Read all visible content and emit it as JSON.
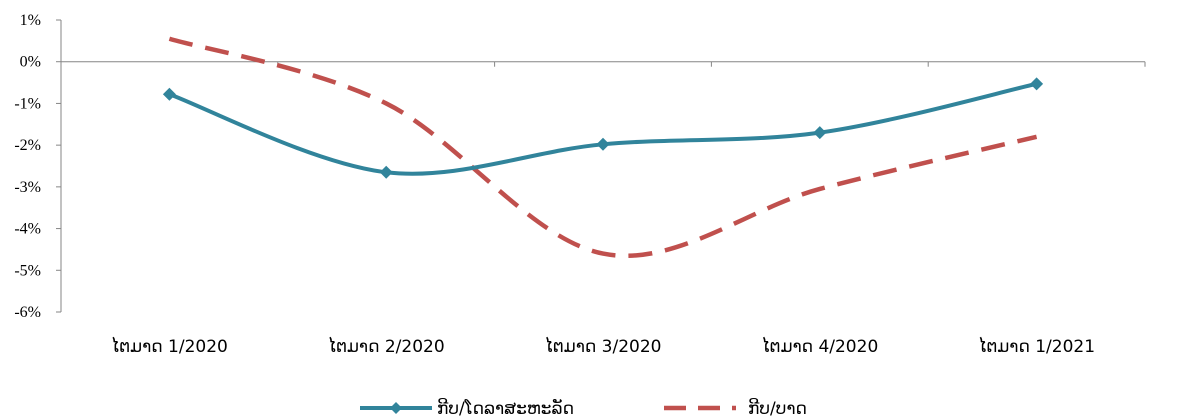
{
  "chart_data": {
    "type": "line",
    "categories": [
      "ໄຕມາດ 1/2020",
      "ໄຕມາດ 2/2020",
      "ໄຕມາດ 3/2020",
      "ໄຕມາດ 4/2020",
      "ໄຕມາດ 1/2021"
    ],
    "series": [
      {
        "name": "ກີບ/ໂດລາສະຫະລັດ",
        "values": [
          -0.78,
          -2.65,
          -1.98,
          -1.7,
          -0.53
        ],
        "color": "#31849b",
        "style": "solid",
        "marker": "diamond"
      },
      {
        "name": "ກີບ/ບາດ",
        "values": [
          0.55,
          -1.0,
          -4.6,
          -3.05,
          -1.8
        ],
        "color": "#c0504d",
        "style": "dashed",
        "marker": "none"
      }
    ],
    "y_ticks": [
      "1%",
      "0%",
      "-1%",
      "-2%",
      "-3%",
      "-4%",
      "-5%",
      "-6%"
    ],
    "ylim": [
      -6,
      1
    ],
    "grid": false,
    "legend_position": "bottom"
  }
}
